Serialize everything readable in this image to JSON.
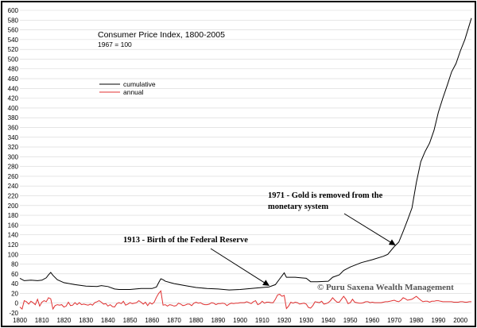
{
  "chart_data": {
    "type": "line",
    "title": "Consumer Price Index, 1800-2005",
    "subtitle": "1967 = 100",
    "xlabel": "",
    "ylabel": "",
    "xlim": [
      1800,
      2005
    ],
    "ylim": [
      -20,
      600
    ],
    "y_ticks": [
      -20,
      0,
      20,
      40,
      60,
      80,
      100,
      120,
      140,
      160,
      180,
      200,
      220,
      240,
      260,
      280,
      300,
      320,
      340,
      360,
      380,
      400,
      420,
      440,
      460,
      480,
      500,
      520,
      540,
      560,
      580,
      600
    ],
    "x_ticks": [
      1800,
      1810,
      1820,
      1830,
      1840,
      1850,
      1860,
      1870,
      1880,
      1890,
      1900,
      1910,
      1920,
      1930,
      1940,
      1950,
      1960,
      1970,
      1980,
      1990,
      2000
    ],
    "grid": true,
    "legend_position": "upper-left",
    "series": [
      {
        "name": "cumulative",
        "color": "#000000",
        "points": [
          [
            1800,
            51
          ],
          [
            1802,
            46
          ],
          [
            1805,
            47
          ],
          [
            1808,
            46
          ],
          [
            1810,
            47
          ],
          [
            1812,
            52
          ],
          [
            1813,
            58
          ],
          [
            1814,
            63
          ],
          [
            1815,
            57
          ],
          [
            1817,
            48
          ],
          [
            1820,
            42
          ],
          [
            1825,
            38
          ],
          [
            1830,
            35
          ],
          [
            1835,
            34
          ],
          [
            1837,
            36
          ],
          [
            1840,
            34
          ],
          [
            1843,
            29
          ],
          [
            1845,
            28
          ],
          [
            1850,
            28
          ],
          [
            1855,
            30
          ],
          [
            1860,
            30
          ],
          [
            1862,
            33
          ],
          [
            1863,
            42
          ],
          [
            1864,
            50
          ],
          [
            1865,
            48
          ],
          [
            1866,
            45
          ],
          [
            1870,
            40
          ],
          [
            1875,
            36
          ],
          [
            1880,
            32
          ],
          [
            1885,
            30
          ],
          [
            1890,
            29
          ],
          [
            1895,
            27
          ],
          [
            1900,
            28
          ],
          [
            1905,
            30
          ],
          [
            1910,
            32
          ],
          [
            1913,
            33
          ],
          [
            1916,
            38
          ],
          [
            1918,
            50
          ],
          [
            1920,
            62
          ],
          [
            1921,
            53
          ],
          [
            1925,
            53
          ],
          [
            1930,
            51
          ],
          [
            1932,
            44
          ],
          [
            1935,
            44
          ],
          [
            1940,
            45
          ],
          [
            1942,
            53
          ],
          [
            1945,
            58
          ],
          [
            1947,
            67
          ],
          [
            1950,
            74
          ],
          [
            1955,
            83
          ],
          [
            1960,
            89
          ],
          [
            1965,
            96
          ],
          [
            1967,
            100
          ],
          [
            1970,
            116
          ],
          [
            1972,
            125
          ],
          [
            1974,
            147
          ],
          [
            1976,
            170
          ],
          [
            1978,
            195
          ],
          [
            1980,
            247
          ],
          [
            1982,
            290
          ],
          [
            1984,
            311
          ],
          [
            1986,
            328
          ],
          [
            1988,
            354
          ],
          [
            1990,
            391
          ],
          [
            1992,
            420
          ],
          [
            1994,
            446
          ],
          [
            1996,
            474
          ],
          [
            1998,
            491
          ],
          [
            2000,
            517
          ],
          [
            2002,
            540
          ],
          [
            2005,
            584
          ]
        ]
      },
      {
        "name": "annual",
        "color": "#e03030",
        "points": [
          [
            1800,
            -8
          ],
          [
            1801,
            -12
          ],
          [
            1802,
            5
          ],
          [
            1803,
            3
          ],
          [
            1804,
            -2
          ],
          [
            1805,
            4
          ],
          [
            1806,
            1
          ],
          [
            1807,
            -3
          ],
          [
            1808,
            8
          ],
          [
            1809,
            -6
          ],
          [
            1810,
            2
          ],
          [
            1811,
            5
          ],
          [
            1812,
            3
          ],
          [
            1813,
            11
          ],
          [
            1814,
            9
          ],
          [
            1815,
            -12
          ],
          [
            1816,
            -5
          ],
          [
            1817,
            -3
          ],
          [
            1818,
            -4
          ],
          [
            1819,
            -3
          ],
          [
            1820,
            -8
          ],
          [
            1821,
            -6
          ],
          [
            1822,
            2
          ],
          [
            1823,
            -5
          ],
          [
            1824,
            -4
          ],
          [
            1825,
            1
          ],
          [
            1826,
            -3
          ],
          [
            1827,
            1
          ],
          [
            1828,
            -3
          ],
          [
            1829,
            -2
          ],
          [
            1830,
            -3
          ],
          [
            1831,
            -4
          ],
          [
            1832,
            -2
          ],
          [
            1833,
            -4
          ],
          [
            1834,
            1
          ],
          [
            1835,
            3
          ],
          [
            1836,
            5
          ],
          [
            1837,
            2
          ],
          [
            1838,
            -2
          ],
          [
            1839,
            -1
          ],
          [
            1840,
            -6
          ],
          [
            1841,
            -3
          ],
          [
            1842,
            -7
          ],
          [
            1843,
            -8
          ],
          [
            1844,
            -1
          ],
          [
            1845,
            1
          ],
          [
            1846,
            -1
          ],
          [
            1847,
            4
          ],
          [
            1848,
            -4
          ],
          [
            1849,
            -2
          ],
          [
            1850,
            1
          ],
          [
            1851,
            -1
          ],
          [
            1852,
            0
          ],
          [
            1853,
            1
          ],
          [
            1854,
            5
          ],
          [
            1855,
            2
          ],
          [
            1856,
            -2
          ],
          [
            1857,
            2
          ],
          [
            1858,
            -5
          ],
          [
            1859,
            1
          ],
          [
            1860,
            -2
          ],
          [
            1861,
            2
          ],
          [
            1862,
            12
          ],
          [
            1863,
            20
          ],
          [
            1864,
            25
          ],
          [
            1865,
            -4
          ],
          [
            1866,
            -3
          ],
          [
            1867,
            -6
          ],
          [
            1868,
            -3
          ],
          [
            1869,
            -4
          ],
          [
            1870,
            -6
          ],
          [
            1871,
            -5
          ],
          [
            1872,
            0
          ],
          [
            1873,
            -2
          ],
          [
            1874,
            -5
          ],
          [
            1875,
            -4
          ],
          [
            1876,
            -2
          ],
          [
            1877,
            -2
          ],
          [
            1878,
            -5
          ],
          [
            1879,
            0
          ],
          [
            1880,
            2
          ],
          [
            1881,
            0
          ],
          [
            1882,
            1
          ],
          [
            1883,
            -2
          ],
          [
            1884,
            -3
          ],
          [
            1885,
            -3
          ],
          [
            1886,
            -2
          ],
          [
            1887,
            1
          ],
          [
            1888,
            0
          ],
          [
            1889,
            -3
          ],
          [
            1890,
            -1
          ],
          [
            1891,
            -1
          ],
          [
            1892,
            0
          ],
          [
            1893,
            -1
          ],
          [
            1894,
            -5
          ],
          [
            1895,
            -2
          ],
          [
            1896,
            0
          ],
          [
            1897,
            -1
          ],
          [
            1898,
            0
          ],
          [
            1899,
            0
          ],
          [
            1900,
            1
          ],
          [
            1901,
            1
          ],
          [
            1902,
            1
          ],
          [
            1903,
            3
          ],
          [
            1904,
            1
          ],
          [
            1905,
            -1
          ],
          [
            1906,
            3
          ],
          [
            1907,
            5
          ],
          [
            1908,
            -3
          ],
          [
            1909,
            -1
          ],
          [
            1910,
            4
          ],
          [
            1911,
            0
          ],
          [
            1912,
            2
          ],
          [
            1913,
            2
          ],
          [
            1914,
            1
          ],
          [
            1915,
            1
          ],
          [
            1916,
            8
          ],
          [
            1917,
            17
          ],
          [
            1918,
            18
          ],
          [
            1919,
            14
          ],
          [
            1920,
            16
          ],
          [
            1921,
            -11
          ],
          [
            1922,
            -6
          ],
          [
            1923,
            2
          ],
          [
            1924,
            0
          ],
          [
            1925,
            2
          ],
          [
            1926,
            1
          ],
          [
            1927,
            -2
          ],
          [
            1928,
            -1
          ],
          [
            1929,
            0
          ],
          [
            1930,
            -2
          ],
          [
            1931,
            -9
          ],
          [
            1932,
            -10
          ],
          [
            1933,
            -5
          ],
          [
            1934,
            3
          ],
          [
            1935,
            2
          ],
          [
            1936,
            1
          ],
          [
            1937,
            4
          ],
          [
            1938,
            -2
          ],
          [
            1939,
            -1
          ],
          [
            1940,
            1
          ],
          [
            1941,
            5
          ],
          [
            1942,
            11
          ],
          [
            1943,
            6
          ],
          [
            1944,
            2
          ],
          [
            1945,
            2
          ],
          [
            1946,
            8
          ],
          [
            1947,
            14
          ],
          [
            1948,
            8
          ],
          [
            1949,
            -1
          ],
          [
            1950,
            1
          ],
          [
            1951,
            8
          ],
          [
            1952,
            2
          ],
          [
            1953,
            1
          ],
          [
            1954,
            0
          ],
          [
            1955,
            0
          ],
          [
            1956,
            1
          ],
          [
            1957,
            3
          ],
          [
            1958,
            3
          ],
          [
            1959,
            1
          ],
          [
            1960,
            2
          ],
          [
            1961,
            1
          ],
          [
            1962,
            1
          ],
          [
            1963,
            1
          ],
          [
            1964,
            1
          ],
          [
            1965,
            2
          ],
          [
            1966,
            3
          ],
          [
            1967,
            3
          ],
          [
            1968,
            4
          ],
          [
            1969,
            5
          ],
          [
            1970,
            6
          ],
          [
            1971,
            4
          ],
          [
            1972,
            3
          ],
          [
            1973,
            6
          ],
          [
            1974,
            11
          ],
          [
            1975,
            9
          ],
          [
            1976,
            6
          ],
          [
            1977,
            7
          ],
          [
            1978,
            8
          ],
          [
            1979,
            11
          ],
          [
            1980,
            14
          ],
          [
            1981,
            10
          ],
          [
            1982,
            6
          ],
          [
            1983,
            3
          ],
          [
            1984,
            4
          ],
          [
            1985,
            4
          ],
          [
            1986,
            2
          ],
          [
            1987,
            4
          ],
          [
            1988,
            4
          ],
          [
            1989,
            5
          ],
          [
            1990,
            5
          ],
          [
            1991,
            4
          ],
          [
            1992,
            3
          ],
          [
            1993,
            3
          ],
          [
            1994,
            3
          ],
          [
            1995,
            3
          ],
          [
            1996,
            3
          ],
          [
            1997,
            2
          ],
          [
            1998,
            2
          ],
          [
            1999,
            2
          ],
          [
            2000,
            3
          ],
          [
            2001,
            3
          ],
          [
            2002,
            2
          ],
          [
            2003,
            2
          ],
          [
            2004,
            3
          ],
          [
            2005,
            3
          ]
        ]
      }
    ],
    "annotations": [
      {
        "text": "1913 - Birth of the Federal Reserve",
        "arrow_to": [
          1913,
          33
        ]
      },
      {
        "lines": [
          "1971  - Gold is removed from the",
          "monetary system"
        ],
        "arrow_to": [
          1971,
          116
        ]
      }
    ],
    "watermark": "© Puru Saxena Wealth Management"
  }
}
